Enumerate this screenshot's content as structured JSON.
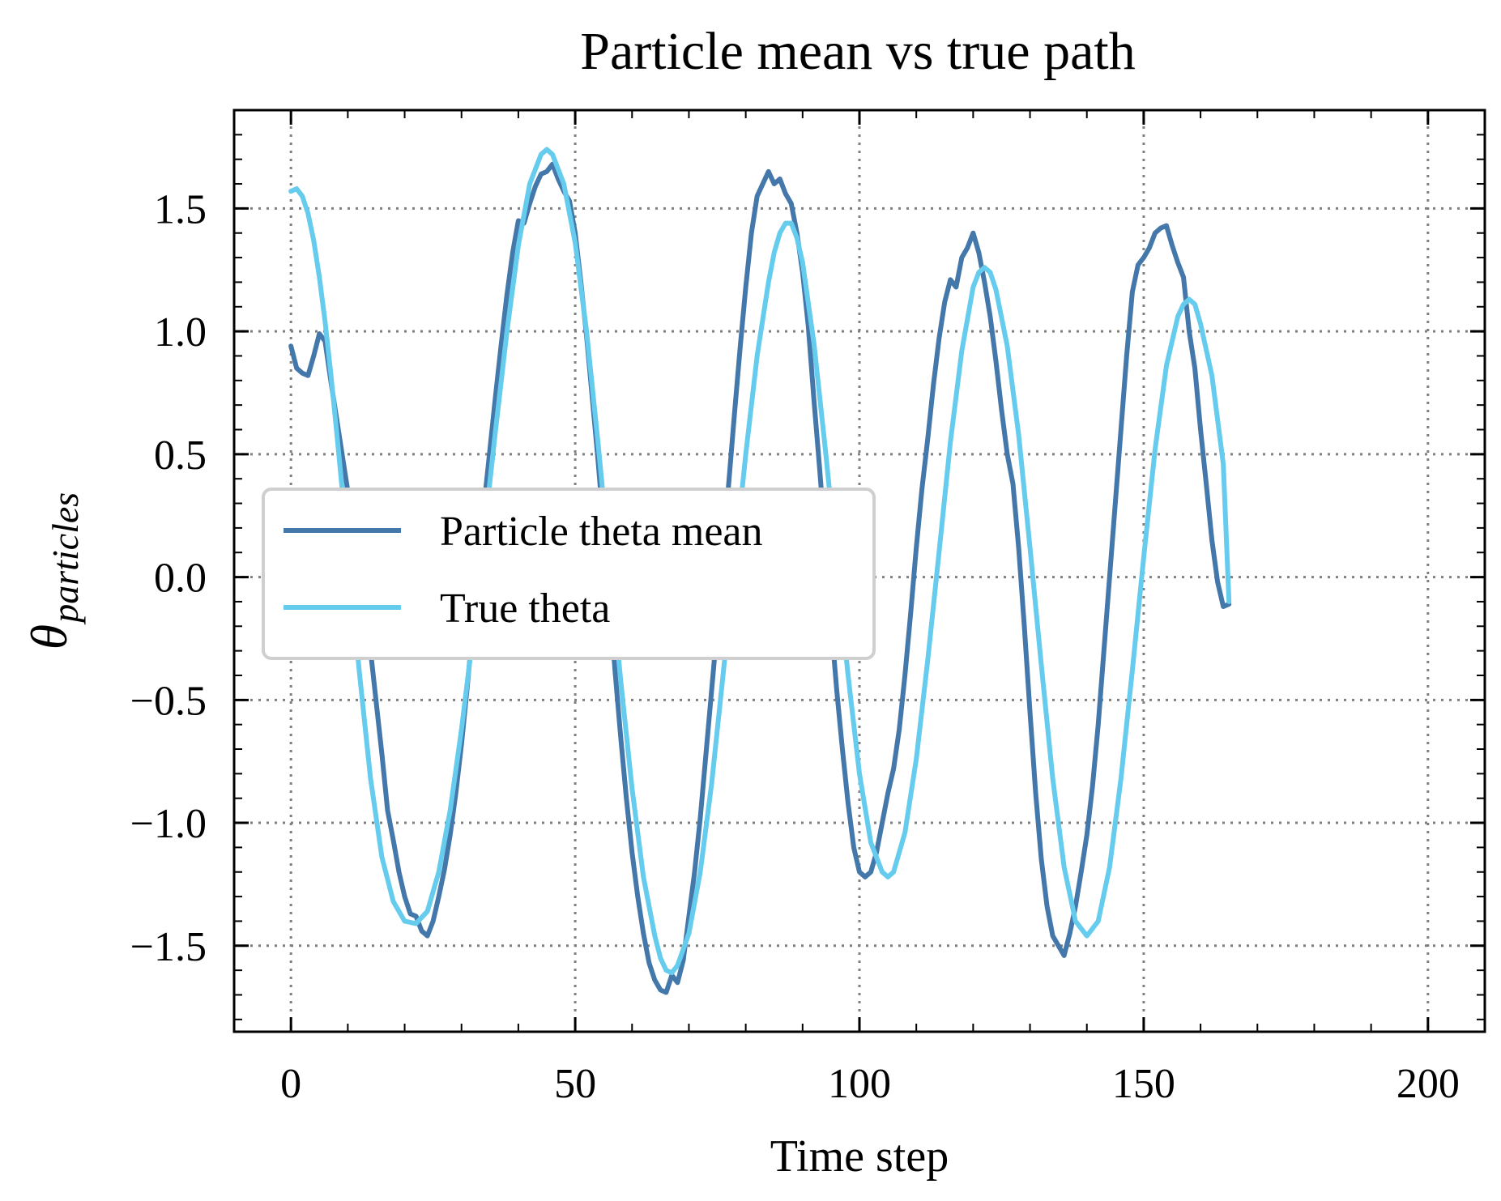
{
  "chart_data": {
    "type": "line",
    "title": "Particle mean vs true path",
    "xlabel": "Time step",
    "ylabel_symbol": "θ",
    "ylabel_subscript": "particles",
    "xlim": [
      -10,
      210
    ],
    "ylim": [
      -1.85,
      1.9
    ],
    "xticks": [
      0,
      50,
      100,
      150,
      200
    ],
    "xtick_labels": [
      "0",
      "50",
      "100",
      "150",
      "200"
    ],
    "yticks": [
      1.5,
      1.0,
      0.5,
      0.0,
      -0.5,
      -1.0,
      -1.5
    ],
    "ytick_labels": [
      "1.5",
      "1.0",
      "0.5",
      "0.0",
      "−0.5",
      "−1.0",
      "−1.5"
    ],
    "grid": true,
    "legend_position": "center-left",
    "series": [
      {
        "name": "Particle theta mean",
        "color": "#4477aa",
        "points": [
          [
            0,
            0.94
          ],
          [
            1,
            0.85
          ],
          [
            2,
            0.83
          ],
          [
            3,
            0.82
          ],
          [
            4,
            0.9
          ],
          [
            5,
            0.99
          ],
          [
            6,
            0.96
          ],
          [
            7,
            0.8
          ],
          [
            8,
            0.65
          ],
          [
            10,
            0.35
          ],
          [
            12,
            0.05
          ],
          [
            14,
            -0.3
          ],
          [
            16,
            -0.72
          ],
          [
            17,
            -0.95
          ],
          [
            18,
            -1.07
          ],
          [
            19,
            -1.2
          ],
          [
            20,
            -1.3
          ],
          [
            21,
            -1.37
          ],
          [
            22,
            -1.38
          ],
          [
            23,
            -1.44
          ],
          [
            24,
            -1.46
          ],
          [
            25,
            -1.4
          ],
          [
            26,
            -1.3
          ],
          [
            27,
            -1.19
          ],
          [
            28,
            -1.05
          ],
          [
            29,
            -0.88
          ],
          [
            30,
            -0.68
          ],
          [
            31,
            -0.45
          ],
          [
            32,
            -0.2
          ],
          [
            33,
            0.05
          ],
          [
            34,
            0.3
          ],
          [
            35,
            0.52
          ],
          [
            36,
            0.74
          ],
          [
            37,
            0.95
          ],
          [
            38,
            1.15
          ],
          [
            39,
            1.32
          ],
          [
            40,
            1.45
          ],
          [
            41,
            1.44
          ],
          [
            42,
            1.52
          ],
          [
            43,
            1.59
          ],
          [
            44,
            1.64
          ],
          [
            45,
            1.65
          ],
          [
            46,
            1.68
          ],
          [
            47,
            1.62
          ],
          [
            48,
            1.57
          ],
          [
            49,
            1.53
          ],
          [
            50,
            1.4
          ],
          [
            51,
            1.2
          ],
          [
            52,
            0.98
          ],
          [
            53,
            0.73
          ],
          [
            54,
            0.48
          ],
          [
            55,
            0.2
          ],
          [
            56,
            -0.08
          ],
          [
            57,
            -0.38
          ],
          [
            58,
            -0.65
          ],
          [
            59,
            -0.9
          ],
          [
            60,
            -1.12
          ],
          [
            61,
            -1.3
          ],
          [
            62,
            -1.45
          ],
          [
            63,
            -1.57
          ],
          [
            64,
            -1.64
          ],
          [
            65,
            -1.68
          ],
          [
            66,
            -1.69
          ],
          [
            67,
            -1.62
          ],
          [
            68,
            -1.65
          ],
          [
            69,
            -1.56
          ],
          [
            70,
            -1.38
          ],
          [
            71,
            -1.2
          ],
          [
            72,
            -0.98
          ],
          [
            73,
            -0.72
          ],
          [
            74,
            -0.46
          ],
          [
            75,
            -0.2
          ],
          [
            76,
            0.1
          ],
          [
            77,
            0.38
          ],
          [
            78,
            0.66
          ],
          [
            79,
            0.93
          ],
          [
            80,
            1.18
          ],
          [
            81,
            1.4
          ],
          [
            82,
            1.55
          ],
          [
            83,
            1.6
          ],
          [
            84,
            1.65
          ],
          [
            85,
            1.6
          ],
          [
            86,
            1.62
          ],
          [
            87,
            1.56
          ],
          [
            88,
            1.52
          ],
          [
            89,
            1.4
          ],
          [
            90,
            1.24
          ],
          [
            91,
            1.02
          ],
          [
            92,
            0.72
          ],
          [
            93,
            0.44
          ],
          [
            94,
            0.14
          ],
          [
            95,
            -0.18
          ],
          [
            96,
            -0.46
          ],
          [
            97,
            -0.7
          ],
          [
            98,
            -0.92
          ],
          [
            99,
            -1.1
          ],
          [
            100,
            -1.2
          ],
          [
            101,
            -1.22
          ],
          [
            102,
            -1.2
          ],
          [
            103,
            -1.12
          ],
          [
            104,
            -1.0
          ],
          [
            105,
            -0.88
          ],
          [
            106,
            -0.78
          ],
          [
            107,
            -0.62
          ],
          [
            108,
            -0.4
          ],
          [
            109,
            -0.15
          ],
          [
            110,
            0.12
          ],
          [
            111,
            0.36
          ],
          [
            112,
            0.56
          ],
          [
            113,
            0.78
          ],
          [
            114,
            0.97
          ],
          [
            115,
            1.12
          ],
          [
            116,
            1.21
          ],
          [
            117,
            1.18
          ],
          [
            118,
            1.3
          ],
          [
            119,
            1.34
          ],
          [
            120,
            1.4
          ],
          [
            121,
            1.32
          ],
          [
            122,
            1.2
          ],
          [
            123,
            1.06
          ],
          [
            124,
            0.88
          ],
          [
            125,
            0.68
          ],
          [
            126,
            0.5
          ],
          [
            127,
            0.38
          ],
          [
            128,
            0.12
          ],
          [
            129,
            -0.2
          ],
          [
            130,
            -0.55
          ],
          [
            131,
            -0.88
          ],
          [
            132,
            -1.15
          ],
          [
            133,
            -1.34
          ],
          [
            134,
            -1.46
          ],
          [
            135,
            -1.5
          ],
          [
            136,
            -1.54
          ],
          [
            137,
            -1.45
          ],
          [
            138,
            -1.34
          ],
          [
            139,
            -1.2
          ],
          [
            140,
            -1.05
          ],
          [
            141,
            -0.85
          ],
          [
            142,
            -0.6
          ],
          [
            143,
            -0.3
          ],
          [
            144,
            0.0
          ],
          [
            145,
            0.3
          ],
          [
            146,
            0.6
          ],
          [
            147,
            0.9
          ],
          [
            148,
            1.16
          ],
          [
            149,
            1.27
          ],
          [
            150,
            1.3
          ],
          [
            151,
            1.34
          ],
          [
            152,
            1.4
          ],
          [
            153,
            1.42
          ],
          [
            154,
            1.43
          ],
          [
            155,
            1.35
          ],
          [
            156,
            1.28
          ],
          [
            157,
            1.22
          ],
          [
            158,
            1.0
          ],
          [
            159,
            0.85
          ],
          [
            160,
            0.6
          ],
          [
            161,
            0.38
          ],
          [
            162,
            0.15
          ],
          [
            163,
            -0.02
          ],
          [
            164,
            -0.12
          ],
          [
            165,
            -0.11
          ]
        ]
      },
      {
        "name": "True theta",
        "color": "#66ccee",
        "points": [
          [
            0,
            1.57
          ],
          [
            1,
            1.58
          ],
          [
            2,
            1.55
          ],
          [
            3,
            1.48
          ],
          [
            4,
            1.37
          ],
          [
            5,
            1.22
          ],
          [
            6,
            1.04
          ],
          [
            7,
            0.83
          ],
          [
            8,
            0.6
          ],
          [
            10,
            0.12
          ],
          [
            12,
            -0.38
          ],
          [
            14,
            -0.82
          ],
          [
            16,
            -1.14
          ],
          [
            18,
            -1.32
          ],
          [
            20,
            -1.4
          ],
          [
            22,
            -1.41
          ],
          [
            24,
            -1.36
          ],
          [
            26,
            -1.2
          ],
          [
            28,
            -0.95
          ],
          [
            30,
            -0.62
          ],
          [
            32,
            -0.24
          ],
          [
            34,
            0.18
          ],
          [
            36,
            0.6
          ],
          [
            38,
            1.0
          ],
          [
            40,
            1.35
          ],
          [
            42,
            1.6
          ],
          [
            44,
            1.72
          ],
          [
            45,
            1.74
          ],
          [
            46,
            1.72
          ],
          [
            48,
            1.6
          ],
          [
            50,
            1.36
          ],
          [
            52,
            1.0
          ],
          [
            54,
            0.55
          ],
          [
            56,
            0.07
          ],
          [
            58,
            -0.42
          ],
          [
            60,
            -0.86
          ],
          [
            62,
            -1.22
          ],
          [
            64,
            -1.46
          ],
          [
            65,
            -1.55
          ],
          [
            66,
            -1.6
          ],
          [
            67,
            -1.61
          ],
          [
            68,
            -1.58
          ],
          [
            70,
            -1.45
          ],
          [
            72,
            -1.2
          ],
          [
            74,
            -0.84
          ],
          [
            76,
            -0.4
          ],
          [
            78,
            0.05
          ],
          [
            80,
            0.5
          ],
          [
            82,
            0.9
          ],
          [
            84,
            1.2
          ],
          [
            85,
            1.32
          ],
          [
            86,
            1.4
          ],
          [
            87,
            1.44
          ],
          [
            88,
            1.44
          ],
          [
            89,
            1.38
          ],
          [
            90,
            1.28
          ],
          [
            92,
            0.95
          ],
          [
            94,
            0.52
          ],
          [
            96,
            0.06
          ],
          [
            98,
            -0.4
          ],
          [
            100,
            -0.8
          ],
          [
            102,
            -1.08
          ],
          [
            104,
            -1.2
          ],
          [
            105,
            -1.22
          ],
          [
            106,
            -1.2
          ],
          [
            108,
            -1.04
          ],
          [
            110,
            -0.74
          ],
          [
            112,
            -0.34
          ],
          [
            114,
            0.1
          ],
          [
            116,
            0.55
          ],
          [
            118,
            0.92
          ],
          [
            120,
            1.18
          ],
          [
            121,
            1.24
          ],
          [
            122,
            1.26
          ],
          [
            123,
            1.24
          ],
          [
            124,
            1.17
          ],
          [
            126,
            0.94
          ],
          [
            128,
            0.58
          ],
          [
            130,
            0.12
          ],
          [
            132,
            -0.36
          ],
          [
            134,
            -0.82
          ],
          [
            136,
            -1.18
          ],
          [
            138,
            -1.4
          ],
          [
            140,
            -1.46
          ],
          [
            142,
            -1.4
          ],
          [
            144,
            -1.18
          ],
          [
            146,
            -0.82
          ],
          [
            148,
            -0.38
          ],
          [
            150,
            0.08
          ],
          [
            152,
            0.52
          ],
          [
            154,
            0.86
          ],
          [
            156,
            1.06
          ],
          [
            157,
            1.11
          ],
          [
            158,
            1.13
          ],
          [
            159,
            1.11
          ],
          [
            160,
            1.03
          ],
          [
            162,
            0.82
          ],
          [
            164,
            0.46
          ],
          [
            165,
            -0.1
          ]
        ]
      }
    ]
  },
  "legend": {
    "entries": [
      "Particle theta mean",
      "True theta"
    ]
  }
}
